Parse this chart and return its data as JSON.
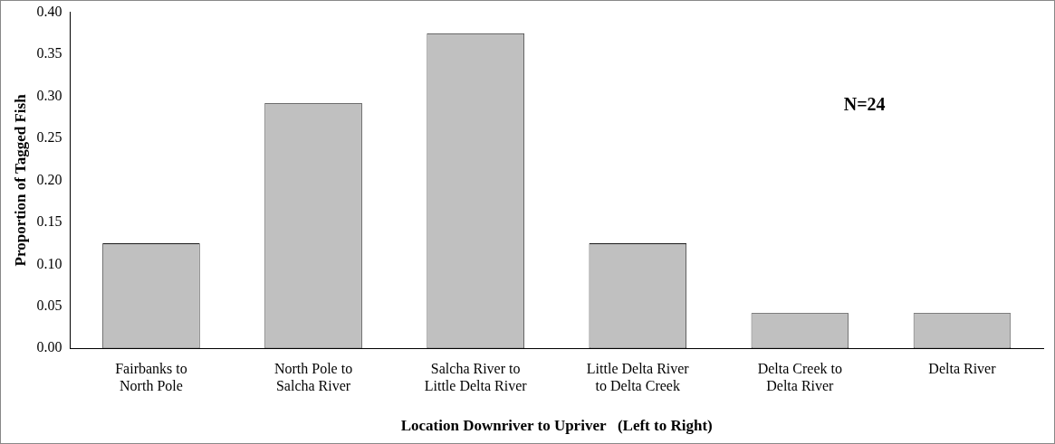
{
  "chart_data": {
    "type": "bar",
    "categories": [
      "Fairbanks to North Pole",
      "North Pole to Salcha River",
      "Salcha River to Little Delta River",
      "Little Delta River to Delta Creek",
      "Delta Creek to Delta River",
      "Delta River"
    ],
    "values": [
      0.125,
      0.292,
      0.375,
      0.125,
      0.042,
      0.042
    ],
    "color": "#c0c0c0",
    "xlabel": "Location Downriver to Upriver   (Left to Right)",
    "ylabel": "Proportion of Tagged Fish",
    "ylim": [
      0,
      0.4
    ],
    "yticks": [
      {
        "value": 0,
        "label": "0.00"
      },
      {
        "value": 0.05,
        "label": "0.05"
      },
      {
        "value": 0.1,
        "label": "0.10"
      },
      {
        "value": 0.15,
        "label": "0.15"
      },
      {
        "value": 0.2,
        "label": "0.20"
      },
      {
        "value": 0.25,
        "label": "0.25"
      },
      {
        "value": 0.3,
        "label": "0.30"
      },
      {
        "value": 0.35,
        "label": "0.35"
      },
      {
        "value": 0.4,
        "label": "0.40"
      }
    ],
    "annotations": [
      "N=24"
    ],
    "grid": false,
    "legend": false
  }
}
